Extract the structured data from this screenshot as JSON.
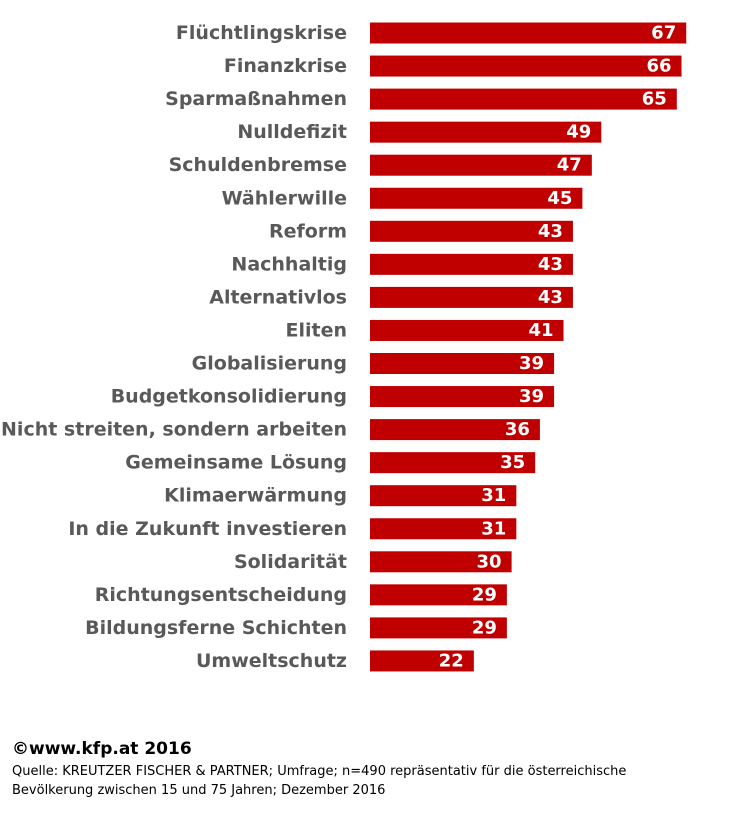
{
  "chart_data": {
    "type": "bar",
    "orientation": "horizontal",
    "categories": [
      "Flüchtlingskrise",
      "Finanzkrise",
      "Sparmaßnahmen",
      "Nulldefizit",
      "Schuldenbremse",
      "Wählerwille",
      "Reform",
      "Nachhaltig",
      "Alternativlos",
      "Eliten",
      "Globalisierung",
      "Budgetkonsolidierung",
      "Nicht streiten, sondern arbeiten",
      "Gemeinsame Lösung",
      "Klimaerwärmung",
      "In die Zukunft investieren",
      "Solidarität",
      "Richtungsentscheidung",
      "Bildungsferne Schichten",
      "Umweltschutz"
    ],
    "values": [
      67,
      66,
      65,
      49,
      47,
      45,
      43,
      43,
      43,
      41,
      39,
      39,
      36,
      35,
      31,
      31,
      30,
      29,
      29,
      22
    ],
    "xlim": [
      0,
      70
    ],
    "grid": false,
    "legend": "none",
    "bar_color": "#c00000",
    "data_labels": "inside-end"
  },
  "footer": {
    "copyright": "©www.kfp.at 2016",
    "source_line1": "Quelle: KREUTZER FISCHER & PARTNER; Umfrage; n=490 repräsentativ für die österreichische",
    "source_line2": "Bevölkerung zwischen 15 und 75 Jahren; Dezember 2016"
  }
}
